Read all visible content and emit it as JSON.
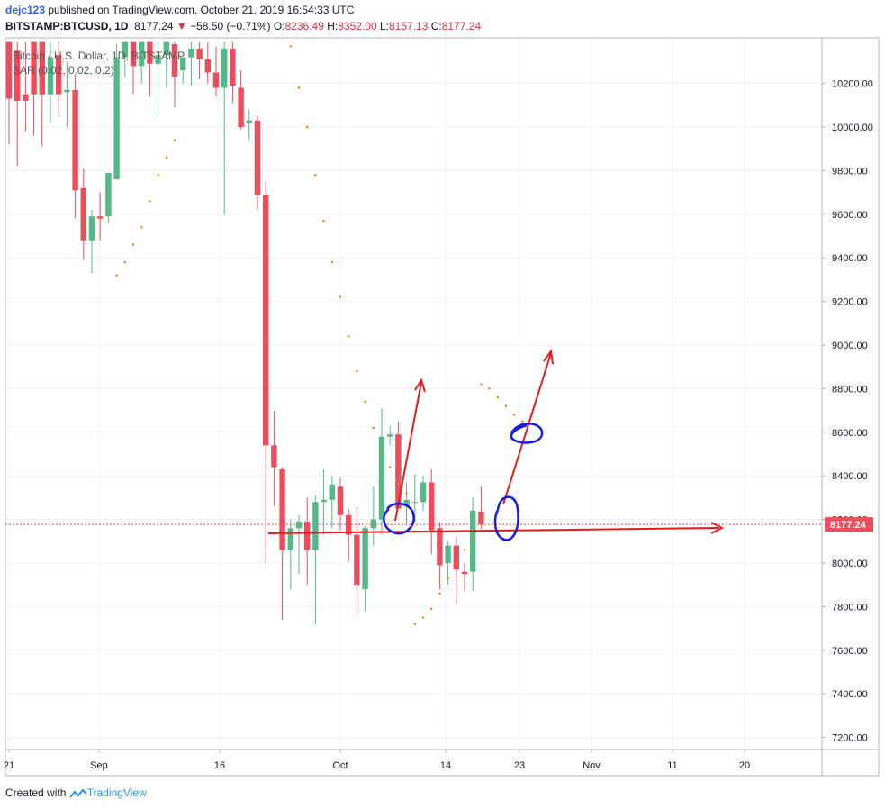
{
  "header": {
    "user": "dejc123",
    "published": " published on TradingView.com, October 21, 2019 16:54:33 UTC",
    "symbol_line": "BITSTAMP:BTCUSD, 1D",
    "last": "8177.24",
    "change_arrow": "▼",
    "change": "−58.50 (−0.71%)",
    "o_label": "O:",
    "o_value": "8236.49",
    "h_label": "H:",
    "h_value": "8352.00",
    "l_label": "L:",
    "l_value": "8157.13",
    "c_label": "C:",
    "c_value": "8177.24"
  },
  "legend": {
    "title": "Bitcoin / U.S. Dollar, 1D, BITSTAMP",
    "indicator": "SAR (0.02, 0.02, 0.2)"
  },
  "footer": {
    "created": "Created with ",
    "brand": "TradingView"
  },
  "colors": {
    "up": "#53b987",
    "down": "#eb4d5c",
    "annotation_red": "#e51b1b",
    "annotation_blue": "#1a1ae0",
    "sar": "#f57c00",
    "price_label": "#eb4d5c"
  },
  "chart_data": {
    "type": "candlestick",
    "symbol": "BITSTAMP:BTCUSD",
    "interval": "1D",
    "x_ticks": [
      "21",
      "Sep",
      "16",
      "Oct",
      "14",
      "23",
      "Nov",
      "11",
      "20"
    ],
    "y_ticks": [
      7200,
      7400,
      7600,
      7800,
      8000,
      8200,
      8400,
      8600,
      8800,
      9000,
      9200,
      9400,
      9600,
      9800,
      10000,
      10200
    ],
    "y_tick_labels": [
      "7200.00",
      "7400.00",
      "7600.00",
      "7800.00",
      "8000.00",
      "8200.00",
      "8400.00",
      "8600.00",
      "8800.00",
      "9000.00",
      "9200.00",
      "9400.00",
      "9600.00",
      "9800.00",
      "10000.00",
      "10200.00"
    ],
    "ylim": [
      7130,
      10390
    ],
    "last_price": 8177.24,
    "last_price_label": "8177.24",
    "grid": true,
    "candles": [
      {
        "o": 10390,
        "h": 10390,
        "l": 9920,
        "c": 10130
      },
      {
        "o": 10350,
        "h": 10390,
        "l": 9820,
        "c": 10120
      },
      {
        "o": 10150,
        "h": 10390,
        "l": 9980,
        "c": 10120
      },
      {
        "o": 10390,
        "h": 10390,
        "l": 9960,
        "c": 10150
      },
      {
        "o": 10390,
        "h": 10390,
        "l": 9910,
        "c": 10150
      },
      {
        "o": 10150,
        "h": 10390,
        "l": 10020,
        "c": 10320
      },
      {
        "o": 10330,
        "h": 10390,
        "l": 10050,
        "c": 10150
      },
      {
        "o": 10160,
        "h": 10300,
        "l": 10000,
        "c": 10170
      },
      {
        "o": 10170,
        "h": 10240,
        "l": 9580,
        "c": 9710
      },
      {
        "o": 9720,
        "h": 9810,
        "l": 9390,
        "c": 9480
      },
      {
        "o": 9480,
        "h": 9620,
        "l": 9330,
        "c": 9590
      },
      {
        "o": 9590,
        "h": 9700,
        "l": 9480,
        "c": 9580
      },
      {
        "o": 9590,
        "h": 9780,
        "l": 9560,
        "c": 9790
      },
      {
        "o": 9760,
        "h": 10380,
        "l": 9760,
        "c": 10320
      },
      {
        "o": 10320,
        "h": 10390,
        "l": 10230,
        "c": 10390
      },
      {
        "o": 10390,
        "h": 10390,
        "l": 10150,
        "c": 10280
      },
      {
        "o": 10280,
        "h": 10390,
        "l": 10200,
        "c": 10390
      },
      {
        "o": 10390,
        "h": 10390,
        "l": 10140,
        "c": 10290
      },
      {
        "o": 10290,
        "h": 10390,
        "l": 10050,
        "c": 10330
      },
      {
        "o": 10330,
        "h": 10390,
        "l": 10180,
        "c": 10390
      },
      {
        "o": 10380,
        "h": 10390,
        "l": 10090,
        "c": 10230
      },
      {
        "o": 10260,
        "h": 10300,
        "l": 10200,
        "c": 10320
      },
      {
        "o": 10320,
        "h": 10390,
        "l": 10190,
        "c": 10360
      },
      {
        "o": 10360,
        "h": 10390,
        "l": 10220,
        "c": 10310
      },
      {
        "o": 10310,
        "h": 10390,
        "l": 10200,
        "c": 10250
      },
      {
        "o": 10250,
        "h": 10370,
        "l": 10140,
        "c": 10180
      },
      {
        "o": 10180,
        "h": 10390,
        "l": 9600,
        "c": 10360
      },
      {
        "o": 10360,
        "h": 10390,
        "l": 10110,
        "c": 10190
      },
      {
        "o": 10180,
        "h": 10260,
        "l": 9990,
        "c": 10000
      },
      {
        "o": 10020,
        "h": 10080,
        "l": 9940,
        "c": 10030
      },
      {
        "o": 10030,
        "h": 10050,
        "l": 9620,
        "c": 9690
      },
      {
        "o": 9690,
        "h": 9750,
        "l": 8000,
        "c": 8540
      },
      {
        "o": 8540,
        "h": 8700,
        "l": 8260,
        "c": 8440
      },
      {
        "o": 8430,
        "h": 8440,
        "l": 7740,
        "c": 8060
      },
      {
        "o": 8060,
        "h": 8200,
        "l": 7880,
        "c": 8160
      },
      {
        "o": 8160,
        "h": 8220,
        "l": 7950,
        "c": 8190
      },
      {
        "o": 8190,
        "h": 8300,
        "l": 7900,
        "c": 8060
      },
      {
        "o": 8060,
        "h": 8310,
        "l": 7720,
        "c": 8280
      },
      {
        "o": 8280,
        "h": 8430,
        "l": 8130,
        "c": 8290
      },
      {
        "o": 8290,
        "h": 8400,
        "l": 8160,
        "c": 8360
      },
      {
        "o": 8350,
        "h": 8390,
        "l": 8150,
        "c": 8220
      },
      {
        "o": 8220,
        "h": 8250,
        "l": 8010,
        "c": 8130
      },
      {
        "o": 8130,
        "h": 8260,
        "l": 7760,
        "c": 7900
      },
      {
        "o": 7880,
        "h": 8170,
        "l": 7780,
        "c": 8160
      },
      {
        "o": 8160,
        "h": 8350,
        "l": 8080,
        "c": 8200
      },
      {
        "o": 8200,
        "h": 8710,
        "l": 8130,
        "c": 8580
      },
      {
        "o": 8580,
        "h": 8630,
        "l": 8540,
        "c": 8590
      },
      {
        "o": 8590,
        "h": 8650,
        "l": 8260,
        "c": 8250
      },
      {
        "o": 8260,
        "h": 8370,
        "l": 8180,
        "c": 8290
      },
      {
        "o": 8280,
        "h": 8410,
        "l": 8190,
        "c": 8280
      },
      {
        "o": 8280,
        "h": 8400,
        "l": 8240,
        "c": 8370
      },
      {
        "o": 8370,
        "h": 8430,
        "l": 8040,
        "c": 8150
      },
      {
        "o": 8160,
        "h": 8190,
        "l": 7880,
        "c": 7990
      },
      {
        "o": 8000,
        "h": 8100,
        "l": 7900,
        "c": 8080
      },
      {
        "o": 8080,
        "h": 8120,
        "l": 7810,
        "c": 7970
      },
      {
        "o": 7960,
        "h": 8000,
        "l": 7870,
        "c": 7950
      },
      {
        "o": 7960,
        "h": 8300,
        "l": 7870,
        "c": 8240
      },
      {
        "o": 8236.49,
        "h": 8352,
        "l": 8157.13,
        "c": 8177.24
      }
    ],
    "sar": [
      {
        "i": 13,
        "v": 9320
      },
      {
        "i": 14,
        "v": 9380
      },
      {
        "i": 15,
        "v": 9460
      },
      {
        "i": 16,
        "v": 9540
      },
      {
        "i": 17,
        "v": 9660
      },
      {
        "i": 18,
        "v": 9780
      },
      {
        "i": 19,
        "v": 9860
      },
      {
        "i": 20,
        "v": 9940
      },
      {
        "i": 34,
        "v": 10370
      },
      {
        "i": 35,
        "v": 10180
      },
      {
        "i": 36,
        "v": 10000
      },
      {
        "i": 37,
        "v": 9780
      },
      {
        "i": 38,
        "v": 9570
      },
      {
        "i": 39,
        "v": 9380
      },
      {
        "i": 40,
        "v": 9220
      },
      {
        "i": 41,
        "v": 9040
      },
      {
        "i": 42,
        "v": 8880
      },
      {
        "i": 43,
        "v": 8740
      },
      {
        "i": 44,
        "v": 8620
      },
      {
        "i": 45,
        "v": 8520
      },
      {
        "i": 46,
        "v": 8440
      },
      {
        "i": 47,
        "v": 8360
      },
      {
        "i": 48,
        "v": 8320
      },
      {
        "i": 49,
        "v": 7720
      },
      {
        "i": 50,
        "v": 7750
      },
      {
        "i": 51,
        "v": 7790
      },
      {
        "i": 52,
        "v": 7860
      },
      {
        "i": 53,
        "v": 7930
      },
      {
        "i": 54,
        "v": 8000
      },
      {
        "i": 55,
        "v": 8060
      },
      {
        "i": 56,
        "v": 8110
      },
      {
        "i": 57,
        "v": 8820
      },
      {
        "i": 58,
        "v": 8800
      },
      {
        "i": 59,
        "v": 8760
      },
      {
        "i": 60,
        "v": 8720
      },
      {
        "i": 61,
        "v": 8680
      },
      {
        "i": 62,
        "v": 8650
      }
    ]
  }
}
